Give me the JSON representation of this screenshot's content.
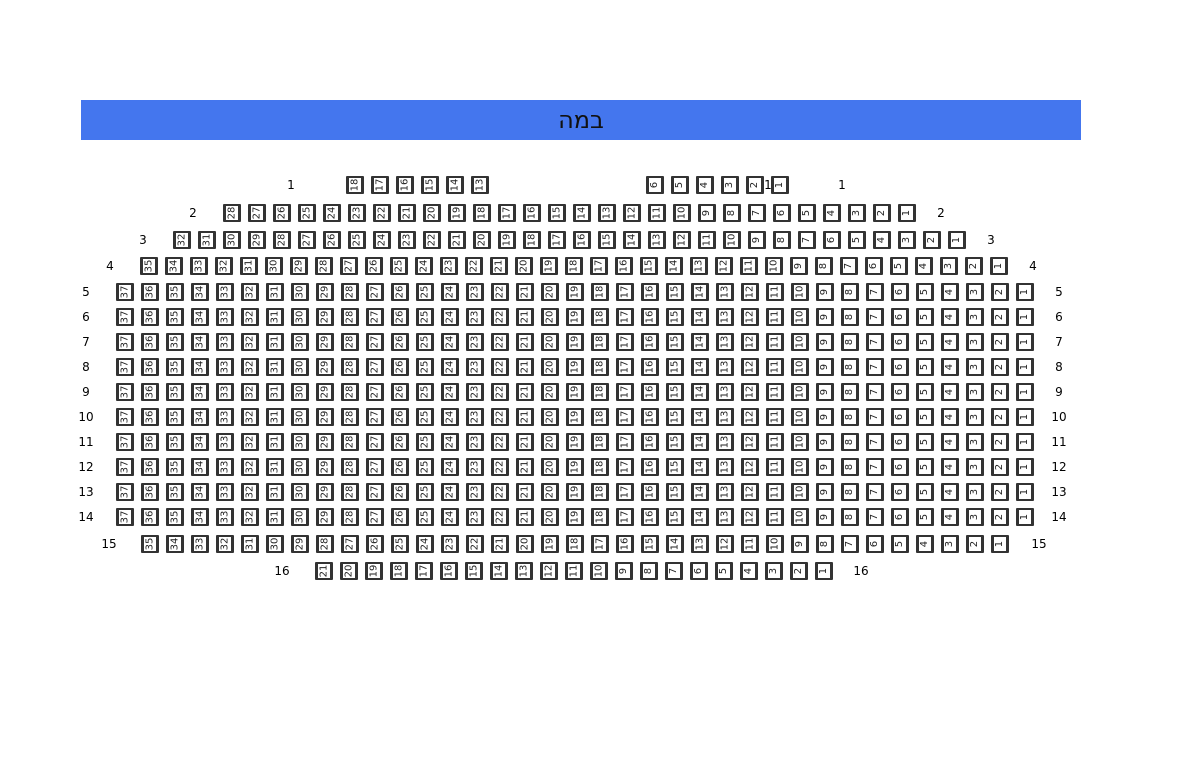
{
  "stage": {
    "label": "במה",
    "color": "#4476ee"
  },
  "seat_color": "#333333",
  "rows": [
    {
      "row": "1",
      "seats": [
        18,
        17,
        16,
        15,
        14,
        13,
        6,
        5,
        4,
        3,
        2,
        1
      ],
      "extra_label": "1"
    },
    {
      "row": "2",
      "seats": [
        28,
        27,
        26,
        25,
        24,
        23,
        22,
        21,
        20,
        19,
        18,
        17,
        16,
        15,
        14,
        13,
        12,
        11,
        10,
        9,
        8,
        7,
        6,
        5,
        4,
        3,
        2,
        1
      ]
    },
    {
      "row": "3",
      "seats": [
        32,
        31,
        30,
        29,
        28,
        27,
        26,
        25,
        24,
        23,
        22,
        21,
        20,
        19,
        18,
        17,
        16,
        15,
        14,
        13,
        12,
        11,
        10,
        9,
        8,
        7,
        6,
        5,
        4,
        3,
        2,
        1
      ]
    },
    {
      "row": "4",
      "seats": [
        35,
        34,
        33,
        32,
        31,
        30,
        29,
        28,
        27,
        26,
        25,
        24,
        23,
        22,
        21,
        20,
        19,
        18,
        17,
        16,
        15,
        14,
        13,
        12,
        11,
        10,
        9,
        8,
        7,
        6,
        5,
        4,
        3,
        2,
        1
      ]
    },
    {
      "row": "5",
      "seats": [
        37,
        36,
        35,
        34,
        33,
        32,
        31,
        30,
        29,
        28,
        27,
        26,
        25,
        24,
        23,
        22,
        21,
        20,
        19,
        18,
        17,
        16,
        15,
        14,
        13,
        12,
        11,
        10,
        9,
        8,
        7,
        6,
        5,
        4,
        3,
        2,
        1
      ]
    },
    {
      "row": "6",
      "seats": [
        37,
        36,
        35,
        34,
        33,
        32,
        31,
        30,
        29,
        28,
        27,
        26,
        25,
        24,
        23,
        22,
        21,
        20,
        19,
        18,
        17,
        16,
        15,
        14,
        13,
        12,
        11,
        10,
        9,
        8,
        7,
        6,
        5,
        4,
        3,
        2,
        1
      ]
    },
    {
      "row": "7",
      "seats": [
        37,
        36,
        35,
        34,
        33,
        32,
        31,
        30,
        29,
        28,
        27,
        26,
        25,
        24,
        23,
        22,
        21,
        20,
        19,
        18,
        17,
        16,
        15,
        14,
        13,
        12,
        11,
        10,
        9,
        8,
        7,
        6,
        5,
        4,
        3,
        2,
        1
      ]
    },
    {
      "row": "8",
      "seats": [
        37,
        36,
        35,
        34,
        33,
        32,
        31,
        30,
        29,
        28,
        27,
        26,
        25,
        24,
        23,
        22,
        21,
        20,
        19,
        18,
        17,
        16,
        15,
        14,
        13,
        12,
        11,
        10,
        9,
        8,
        7,
        6,
        5,
        4,
        3,
        2,
        1
      ]
    },
    {
      "row": "9",
      "seats": [
        37,
        36,
        35,
        34,
        33,
        32,
        31,
        30,
        29,
        28,
        27,
        26,
        25,
        24,
        23,
        22,
        21,
        20,
        19,
        18,
        17,
        16,
        15,
        14,
        13,
        12,
        11,
        10,
        9,
        8,
        7,
        6,
        5,
        4,
        3,
        2,
        1
      ]
    },
    {
      "row": "10",
      "seats": [
        37,
        36,
        35,
        34,
        33,
        32,
        31,
        30,
        29,
        28,
        27,
        26,
        25,
        24,
        23,
        22,
        21,
        20,
        19,
        18,
        17,
        16,
        15,
        14,
        13,
        12,
        11,
        10,
        9,
        8,
        7,
        6,
        5,
        4,
        3,
        2,
        1
      ]
    },
    {
      "row": "11",
      "seats": [
        37,
        36,
        35,
        34,
        33,
        32,
        31,
        30,
        29,
        28,
        27,
        26,
        25,
        24,
        23,
        22,
        21,
        20,
        19,
        18,
        17,
        16,
        15,
        14,
        13,
        12,
        11,
        10,
        9,
        8,
        7,
        6,
        5,
        4,
        3,
        2,
        1
      ]
    },
    {
      "row": "12",
      "seats": [
        37,
        36,
        35,
        34,
        33,
        32,
        31,
        30,
        29,
        28,
        27,
        26,
        25,
        24,
        23,
        22,
        21,
        20,
        19,
        18,
        17,
        16,
        15,
        14,
        13,
        12,
        11,
        10,
        9,
        8,
        7,
        6,
        5,
        4,
        3,
        2,
        1
      ]
    },
    {
      "row": "13",
      "seats": [
        37,
        36,
        35,
        34,
        33,
        32,
        31,
        30,
        29,
        28,
        27,
        26,
        25,
        24,
        23,
        22,
        21,
        20,
        19,
        18,
        17,
        16,
        15,
        14,
        13,
        12,
        11,
        10,
        9,
        8,
        7,
        6,
        5,
        4,
        3,
        2,
        1
      ]
    },
    {
      "row": "14",
      "seats": [
        37,
        36,
        35,
        34,
        33,
        32,
        31,
        30,
        29,
        28,
        27,
        26,
        25,
        24,
        23,
        22,
        21,
        20,
        19,
        18,
        17,
        16,
        15,
        14,
        13,
        12,
        11,
        10,
        9,
        8,
        7,
        6,
        5,
        4,
        3,
        2,
        1
      ]
    },
    {
      "row": "15",
      "seats": [
        35,
        34,
        33,
        32,
        31,
        30,
        29,
        28,
        27,
        26,
        25,
        24,
        23,
        22,
        21,
        20,
        19,
        18,
        17,
        16,
        15,
        14,
        13,
        12,
        11,
        10,
        9,
        8,
        7,
        6,
        5,
        4,
        3,
        2,
        1
      ]
    },
    {
      "row": "16",
      "seats": [
        21,
        20,
        19,
        18,
        17,
        16,
        15,
        14,
        13,
        12,
        11,
        10,
        9,
        8,
        7,
        6,
        5,
        4,
        3,
        2,
        1
      ]
    }
  ]
}
